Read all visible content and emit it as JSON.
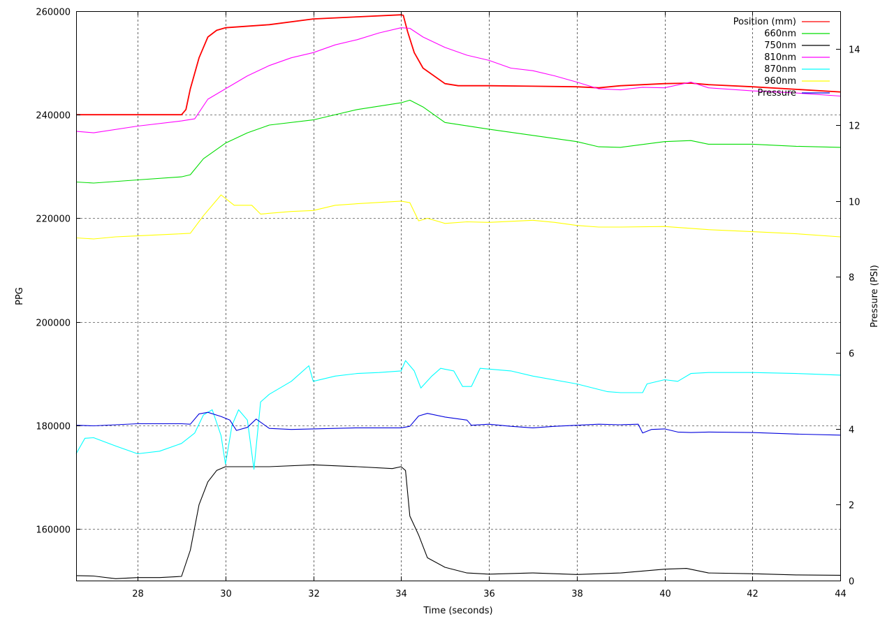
{
  "chart_data": {
    "type": "line",
    "xlabel": "Time (seconds)",
    "ylabel": "PPG",
    "y2label": "Pressure (PSI)",
    "xlim": [
      26.6,
      44.0
    ],
    "ylim": [
      150000,
      260000
    ],
    "y2lim": [
      0,
      15
    ],
    "xticks": [
      28,
      30,
      32,
      34,
      36,
      38,
      40,
      42,
      44
    ],
    "yticks": [
      160000,
      180000,
      200000,
      220000,
      240000,
      260000
    ],
    "y2ticks": [
      0,
      2,
      4,
      6,
      8,
      10,
      12,
      14
    ],
    "grid": true,
    "legend_position": "top-right",
    "series": [
      {
        "name": "Position (mm)",
        "color": "#ff0000",
        "axis": "y",
        "points": [
          [
            26.6,
            240000
          ],
          [
            29.0,
            240000
          ],
          [
            29.1,
            241000
          ],
          [
            29.2,
            245000
          ],
          [
            29.4,
            251000
          ],
          [
            29.6,
            255000
          ],
          [
            29.8,
            256300
          ],
          [
            30.0,
            256800
          ],
          [
            31.0,
            257400
          ],
          [
            32.0,
            258500
          ],
          [
            33.0,
            258900
          ],
          [
            34.0,
            259300
          ],
          [
            34.05,
            259200
          ],
          [
            34.15,
            256000
          ],
          [
            34.3,
            252000
          ],
          [
            34.5,
            249000
          ],
          [
            35.0,
            246000
          ],
          [
            35.3,
            245600
          ],
          [
            36.0,
            245600
          ],
          [
            37.0,
            245500
          ],
          [
            38.0,
            245400
          ],
          [
            38.5,
            245200
          ],
          [
            39.0,
            245600
          ],
          [
            40.0,
            246000
          ],
          [
            40.6,
            246100
          ],
          [
            41.0,
            245800
          ],
          [
            42.0,
            245400
          ],
          [
            43.0,
            244900
          ],
          [
            44.0,
            244400
          ]
        ]
      },
      {
        "name": "660nm",
        "color": "#00dd00",
        "axis": "y",
        "points": [
          [
            26.6,
            227000
          ],
          [
            27.0,
            226800
          ],
          [
            28.0,
            227400
          ],
          [
            29.0,
            228000
          ],
          [
            29.2,
            228400
          ],
          [
            29.5,
            231500
          ],
          [
            30.0,
            234500
          ],
          [
            30.5,
            236500
          ],
          [
            31.0,
            238000
          ],
          [
            32.0,
            239000
          ],
          [
            33.0,
            241000
          ],
          [
            34.0,
            242300
          ],
          [
            34.2,
            242800
          ],
          [
            34.5,
            241500
          ],
          [
            35.0,
            238500
          ],
          [
            36.0,
            237200
          ],
          [
            37.0,
            236000
          ],
          [
            38.0,
            234800
          ],
          [
            38.5,
            233800
          ],
          [
            39.0,
            233700
          ],
          [
            40.0,
            234800
          ],
          [
            40.6,
            235000
          ],
          [
            41.0,
            234300
          ],
          [
            42.0,
            234300
          ],
          [
            43.0,
            233900
          ],
          [
            44.0,
            233700
          ]
        ]
      },
      {
        "name": "750nm",
        "color": "#000000",
        "axis": "y2",
        "points": [
          [
            26.6,
            0.13
          ],
          [
            27.0,
            0.12
          ],
          [
            27.5,
            0.05
          ],
          [
            28.0,
            0.08
          ],
          [
            28.5,
            0.08
          ],
          [
            29.0,
            0.11
          ],
          [
            29.2,
            0.8
          ],
          [
            29.4,
            2.0
          ],
          [
            29.6,
            2.6
          ],
          [
            29.8,
            2.9
          ],
          [
            30.0,
            3.0
          ],
          [
            31.0,
            3.0
          ],
          [
            32.0,
            3.05
          ],
          [
            33.0,
            3.0
          ],
          [
            33.8,
            2.95
          ],
          [
            34.0,
            3.0
          ],
          [
            34.1,
            2.9
          ],
          [
            34.2,
            1.7
          ],
          [
            34.4,
            1.2
          ],
          [
            34.6,
            0.6
          ],
          [
            35.0,
            0.35
          ],
          [
            35.5,
            0.2
          ],
          [
            36.0,
            0.17
          ],
          [
            37.0,
            0.2
          ],
          [
            38.0,
            0.16
          ],
          [
            39.0,
            0.2
          ],
          [
            40.0,
            0.3
          ],
          [
            40.5,
            0.32
          ],
          [
            41.0,
            0.2
          ],
          [
            42.0,
            0.18
          ],
          [
            43.0,
            0.15
          ],
          [
            44.0,
            0.14
          ]
        ]
      },
      {
        "name": "810nm",
        "color": "#ff00ff",
        "axis": "y",
        "points": [
          [
            26.6,
            236800
          ],
          [
            27.0,
            236500
          ],
          [
            28.0,
            237800
          ],
          [
            29.0,
            238800
          ],
          [
            29.3,
            239200
          ],
          [
            29.6,
            243000
          ],
          [
            30.0,
            245000
          ],
          [
            30.5,
            247500
          ],
          [
            31.0,
            249500
          ],
          [
            31.5,
            251000
          ],
          [
            32.0,
            252000
          ],
          [
            32.5,
            253500
          ],
          [
            33.0,
            254500
          ],
          [
            33.5,
            255800
          ],
          [
            34.0,
            256800
          ],
          [
            34.2,
            256700
          ],
          [
            34.5,
            255000
          ],
          [
            35.0,
            253000
          ],
          [
            35.5,
            251500
          ],
          [
            36.0,
            250500
          ],
          [
            36.5,
            249000
          ],
          [
            37.0,
            248500
          ],
          [
            37.5,
            247500
          ],
          [
            38.0,
            246300
          ],
          [
            38.5,
            245000
          ],
          [
            39.0,
            244800
          ],
          [
            39.5,
            245300
          ],
          [
            40.0,
            245200
          ],
          [
            40.6,
            246300
          ],
          [
            41.0,
            245200
          ],
          [
            42.0,
            244600
          ],
          [
            43.0,
            244200
          ],
          [
            44.0,
            243600
          ]
        ]
      },
      {
        "name": "870nm",
        "color": "#00ffff",
        "axis": "y",
        "points": [
          [
            26.6,
            174500
          ],
          [
            26.8,
            177500
          ],
          [
            27.0,
            177600
          ],
          [
            27.5,
            176000
          ],
          [
            28.0,
            174500
          ],
          [
            28.5,
            175000
          ],
          [
            29.0,
            176500
          ],
          [
            29.3,
            178500
          ],
          [
            29.5,
            182000
          ],
          [
            29.7,
            183000
          ],
          [
            29.9,
            178000
          ],
          [
            30.0,
            172500
          ],
          [
            30.15,
            180000
          ],
          [
            30.3,
            183000
          ],
          [
            30.5,
            181000
          ],
          [
            30.65,
            171500
          ],
          [
            30.8,
            184500
          ],
          [
            31.0,
            186000
          ],
          [
            31.5,
            188500
          ],
          [
            31.9,
            191500
          ],
          [
            32.0,
            188500
          ],
          [
            32.5,
            189500
          ],
          [
            33.0,
            190000
          ],
          [
            33.5,
            190200
          ],
          [
            34.0,
            190500
          ],
          [
            34.1,
            192500
          ],
          [
            34.3,
            190500
          ],
          [
            34.45,
            187200
          ],
          [
            34.7,
            189500
          ],
          [
            34.9,
            191000
          ],
          [
            35.2,
            190500
          ],
          [
            35.4,
            187500
          ],
          [
            35.6,
            187500
          ],
          [
            35.8,
            191000
          ],
          [
            36.5,
            190500
          ],
          [
            37.0,
            189500
          ],
          [
            38.0,
            188000
          ],
          [
            38.7,
            186500
          ],
          [
            39.0,
            186300
          ],
          [
            39.5,
            186300
          ],
          [
            39.6,
            188000
          ],
          [
            40.0,
            188800
          ],
          [
            40.3,
            188500
          ],
          [
            40.6,
            190000
          ],
          [
            41.0,
            190200
          ],
          [
            42.0,
            190200
          ],
          [
            43.0,
            190000
          ],
          [
            44.0,
            189700
          ]
        ]
      },
      {
        "name": "960nm",
        "color": "#ffff00",
        "axis": "y",
        "points": [
          [
            26.6,
            216200
          ],
          [
            27.0,
            216000
          ],
          [
            27.5,
            216400
          ],
          [
            28.0,
            216600
          ],
          [
            29.0,
            217000
          ],
          [
            29.2,
            217100
          ],
          [
            29.5,
            220500
          ],
          [
            29.9,
            224500
          ],
          [
            30.2,
            222500
          ],
          [
            30.6,
            222500
          ],
          [
            30.8,
            220800
          ],
          [
            31.5,
            221300
          ],
          [
            32.0,
            221500
          ],
          [
            32.5,
            222500
          ],
          [
            33.0,
            222800
          ],
          [
            34.0,
            223300
          ],
          [
            34.2,
            223000
          ],
          [
            34.4,
            219500
          ],
          [
            34.6,
            220000
          ],
          [
            35.0,
            219000
          ],
          [
            35.5,
            219300
          ],
          [
            36.0,
            219200
          ],
          [
            37.0,
            219600
          ],
          [
            37.5,
            219200
          ],
          [
            38.0,
            218600
          ],
          [
            38.5,
            218300
          ],
          [
            39.0,
            218300
          ],
          [
            40.0,
            218400
          ],
          [
            40.5,
            218100
          ],
          [
            41.0,
            217800
          ],
          [
            42.0,
            217400
          ],
          [
            43.0,
            217000
          ],
          [
            44.0,
            216400
          ]
        ]
      },
      {
        "name": "Pressure",
        "color": "#0000dd",
        "axis": "y",
        "points": [
          [
            26.6,
            180000
          ],
          [
            27.0,
            179900
          ],
          [
            28.0,
            180300
          ],
          [
            29.0,
            180300
          ],
          [
            29.2,
            180200
          ],
          [
            29.4,
            182200
          ],
          [
            29.6,
            182500
          ],
          [
            29.9,
            181700
          ],
          [
            30.1,
            181000
          ],
          [
            30.25,
            179000
          ],
          [
            30.5,
            179600
          ],
          [
            30.7,
            181200
          ],
          [
            31.0,
            179400
          ],
          [
            31.5,
            179200
          ],
          [
            32.0,
            179300
          ],
          [
            33.0,
            179500
          ],
          [
            34.0,
            179500
          ],
          [
            34.2,
            179800
          ],
          [
            34.4,
            181800
          ],
          [
            34.6,
            182300
          ],
          [
            35.0,
            181600
          ],
          [
            35.5,
            181000
          ],
          [
            35.6,
            180000
          ],
          [
            36.0,
            180200
          ],
          [
            36.5,
            179800
          ],
          [
            37.0,
            179500
          ],
          [
            37.5,
            179800
          ],
          [
            38.0,
            180000
          ],
          [
            38.5,
            180200
          ],
          [
            39.0,
            180100
          ],
          [
            39.4,
            180200
          ],
          [
            39.5,
            178500
          ],
          [
            39.7,
            179200
          ],
          [
            40.0,
            179300
          ],
          [
            40.3,
            178700
          ],
          [
            40.6,
            178600
          ],
          [
            41.0,
            178700
          ],
          [
            42.0,
            178600
          ],
          [
            43.0,
            178300
          ],
          [
            44.0,
            178100
          ]
        ]
      }
    ]
  }
}
